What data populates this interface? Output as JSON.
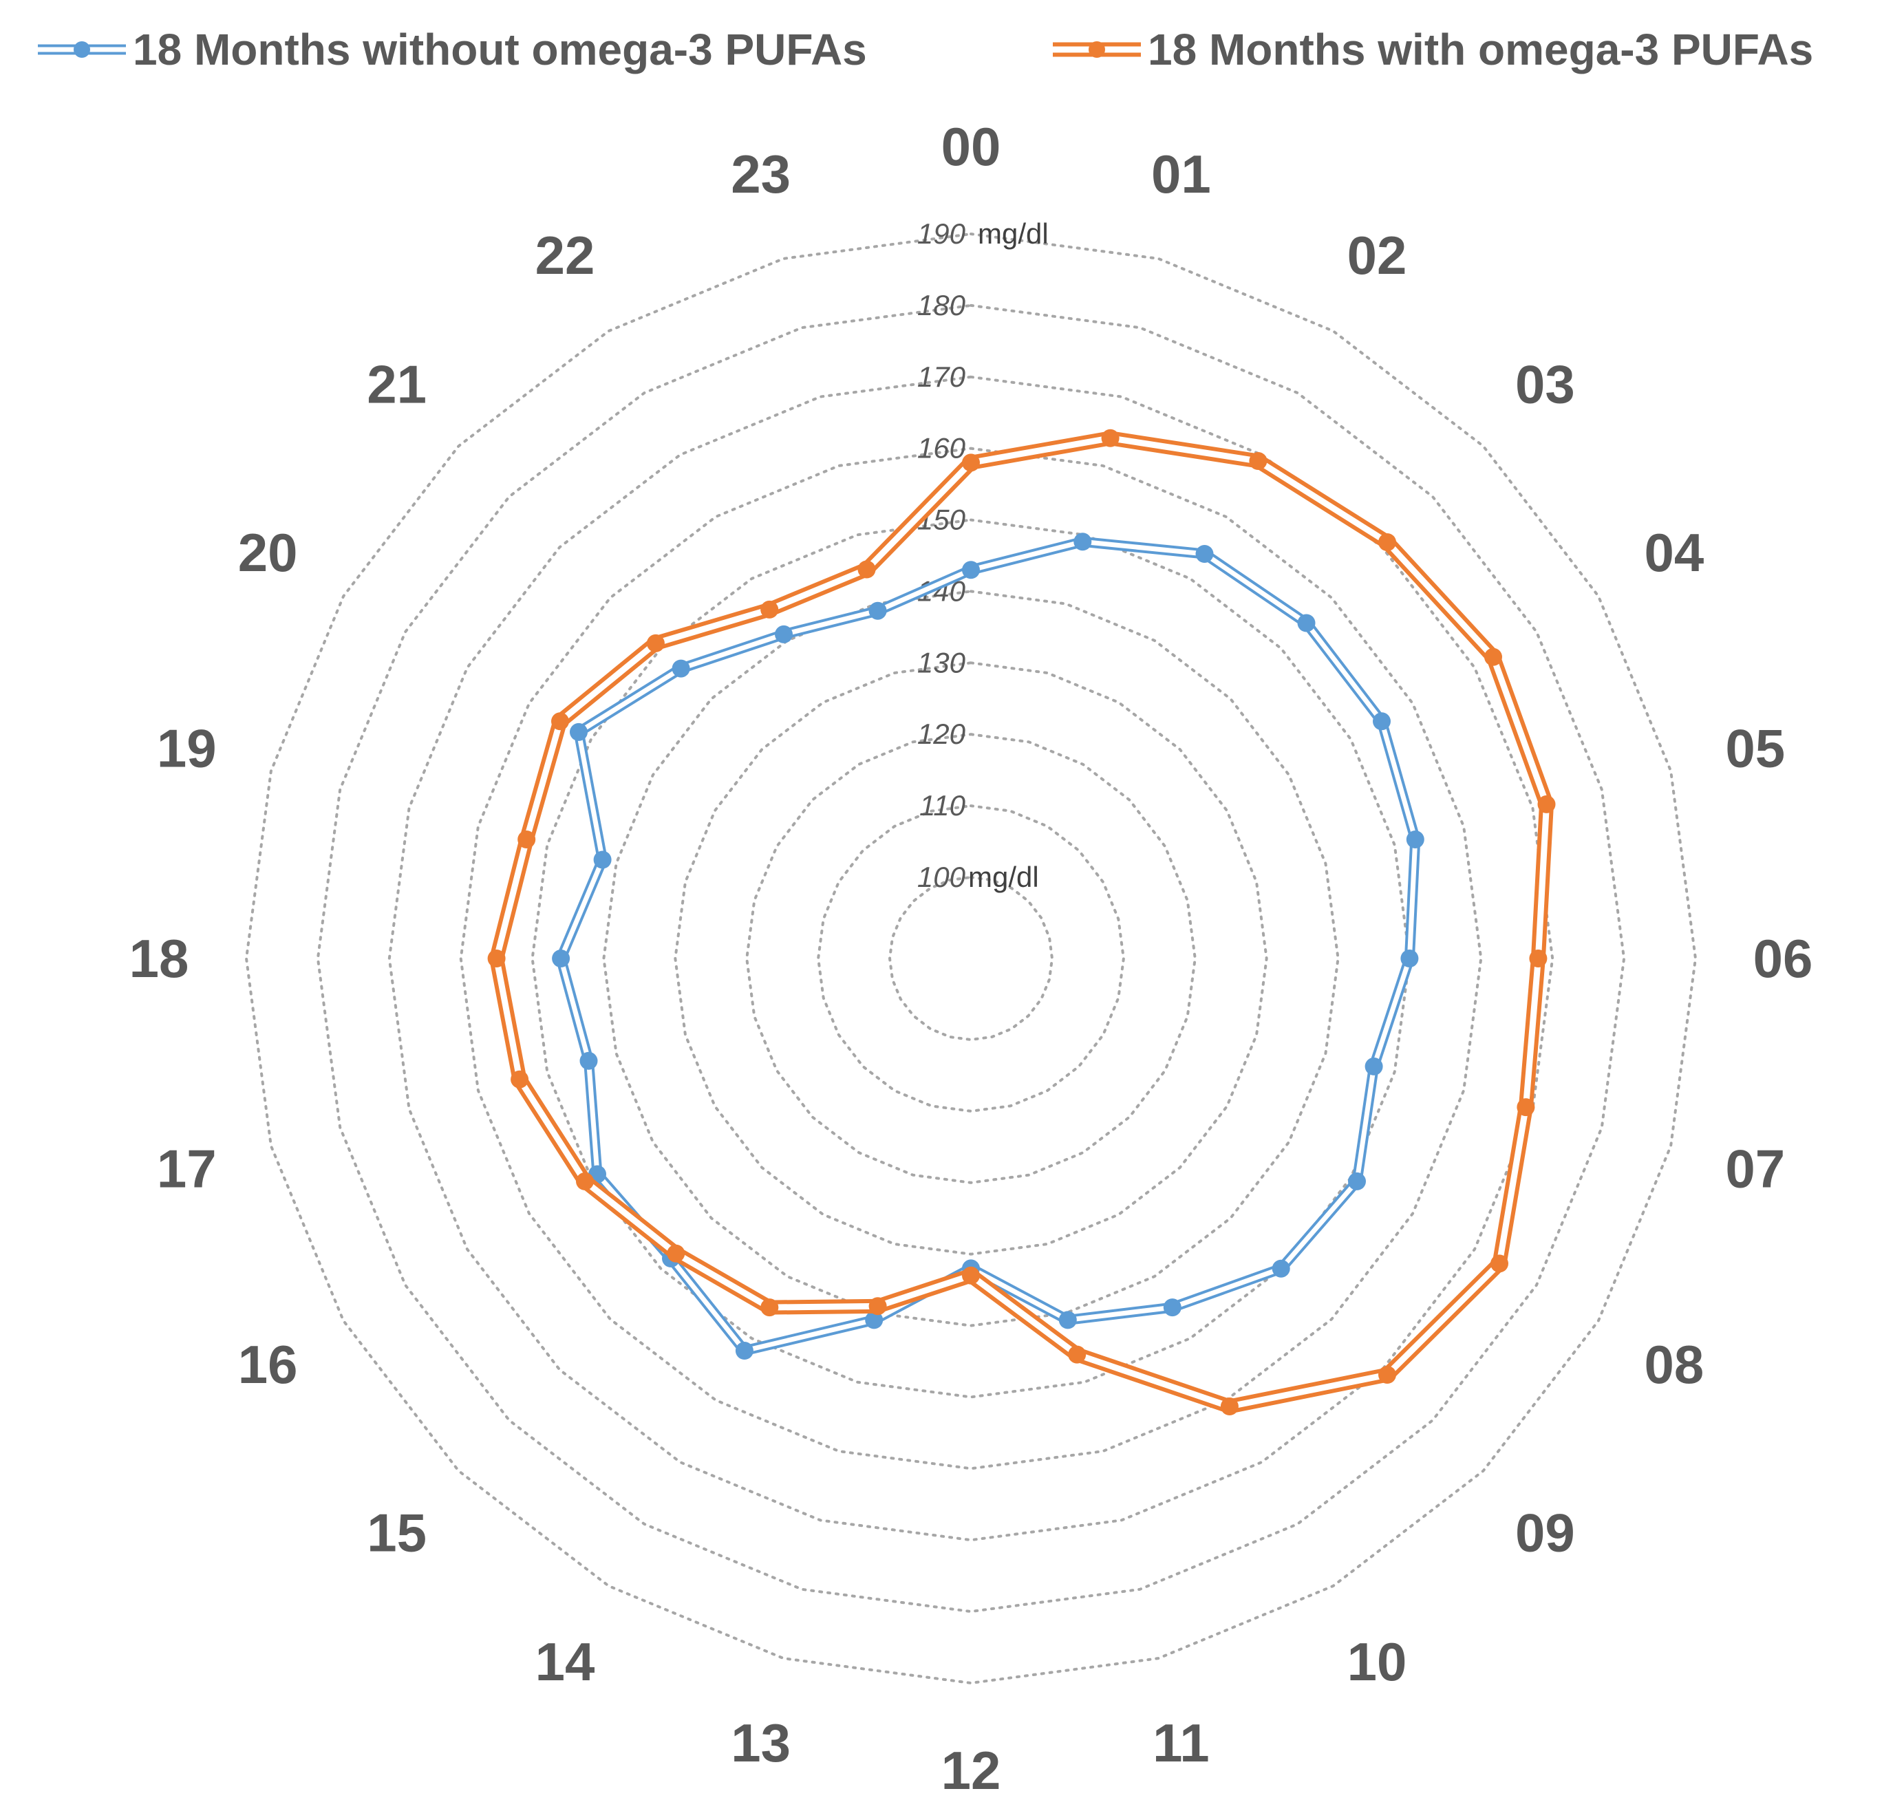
{
  "chart_data": {
    "type": "radar",
    "title": "",
    "categories": [
      "00",
      "01",
      "02",
      "03",
      "04",
      "05",
      "06",
      "07",
      "08",
      "09",
      "10",
      "11",
      "12",
      "13",
      "14",
      "15",
      "16",
      "17",
      "18",
      "19",
      "20",
      "21",
      "22",
      "23"
    ],
    "radial_axis": {
      "min": 100,
      "max": 190,
      "ticks": [
        100,
        110,
        120,
        130,
        140,
        150,
        160,
        170,
        180,
        190
      ],
      "unit": "mg/dl",
      "unit_tick_values": [
        100,
        190
      ]
    },
    "grid": true,
    "legend_position": "top",
    "series": [
      {
        "name": "18 Months without omega-3 PUFAs",
        "color": "#5B9BD5",
        "values": [
          143,
          149,
          154,
          155,
          155,
          153,
          150,
          147,
          151,
          150,
          145,
          141,
          132,
          141,
          152,
          148,
          149,
          144,
          146,
          142,
          152,
          146,
          141,
          139
        ]
      },
      {
        "name": "18 Months with omega-3 PUFAs",
        "color": "#ED7D31",
        "values": [
          158,
          164,
          169,
          171,
          173,
          172,
          168,
          169,
          174,
          171,
          161,
          146,
          133,
          139,
          145,
          147,
          151,
          154,
          155,
          153,
          155,
          151,
          145,
          145
        ]
      }
    ]
  }
}
